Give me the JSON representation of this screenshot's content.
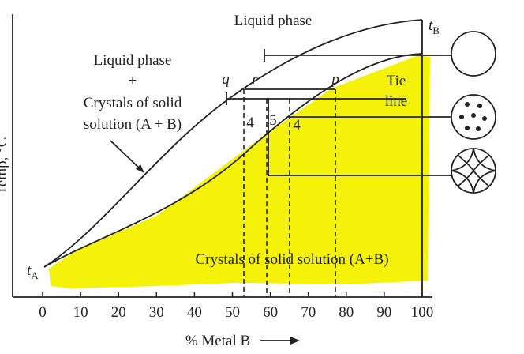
{
  "diagram": {
    "top_label": "Liquid phase",
    "t_b": {
      "main": "t",
      "sub": "B"
    },
    "t_a": {
      "main": "t",
      "sub": "A"
    },
    "left_label": [
      "Liquid phase",
      "+",
      "Crystals of solid",
      "solution (A + B)"
    ],
    "points": {
      "q": "q",
      "r": "r",
      "p": "p"
    },
    "tie_line": [
      "Tie",
      "line"
    ],
    "segment_labels": [
      "4",
      "5",
      "4"
    ],
    "bottom_label": "Crystals of solid solution (A+B)",
    "y_axis_label": "Temp, °C",
    "x_axis_label": "% Metal B",
    "x_ticks": [
      "0",
      "10",
      "20",
      "30",
      "40",
      "50",
      "60",
      "70",
      "80",
      "90",
      "100"
    ]
  }
}
